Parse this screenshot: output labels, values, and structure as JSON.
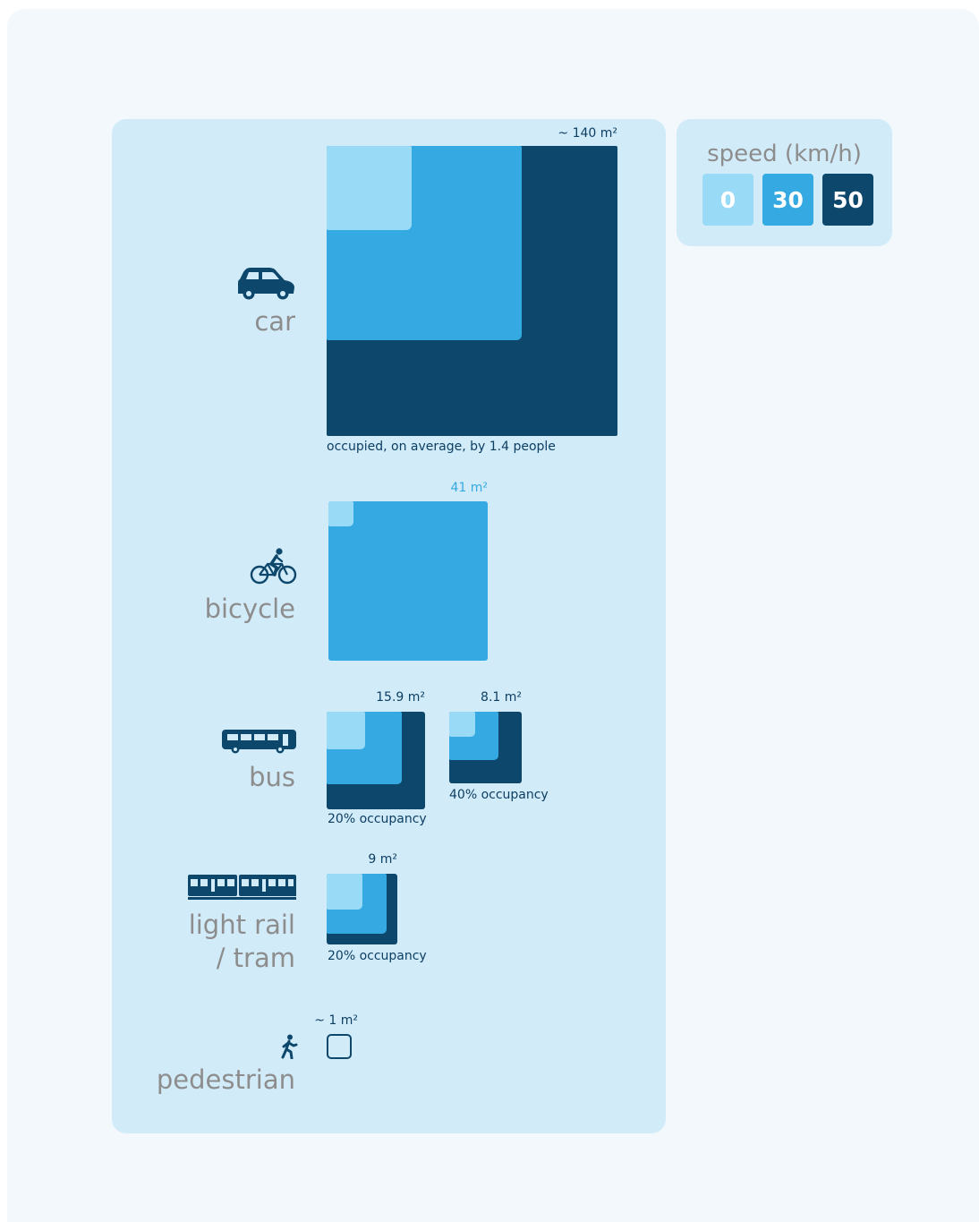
{
  "colors": {
    "speed_0": "#99daf6",
    "speed_30": "#35a9e1",
    "speed_50": "#0d486c",
    "label_gray": "#8d8d8d",
    "panel_bg": "#d1ebf9"
  },
  "legend": {
    "title": "speed (km/h)",
    "speeds": [
      "0",
      "30",
      "50"
    ]
  },
  "modes": [
    {
      "id": "car",
      "label": "car",
      "icon": "car-icon",
      "area_label": "~ 140 m²",
      "note": "occupied, on average, by 1.4 people"
    },
    {
      "id": "bicycle",
      "label": "bicycle",
      "icon": "bicycle-icon",
      "area_label": "41 m²"
    },
    {
      "id": "bus",
      "label": "bus",
      "icon": "bus-icon",
      "variants": [
        {
          "area_label": "15.9 m²",
          "note": "20% occupancy"
        },
        {
          "area_label": "8.1 m²",
          "note": "40% occupancy"
        }
      ]
    },
    {
      "id": "light-rail",
      "label_line1": "light rail",
      "label_line2": "/ tram",
      "icon": "tram-icon",
      "area_label": "9 m²",
      "note": "20% occupancy"
    },
    {
      "id": "pedestrian",
      "label": "pedestrian",
      "icon": "walking-person-icon",
      "area_label": "~ 1 m²"
    }
  ]
}
